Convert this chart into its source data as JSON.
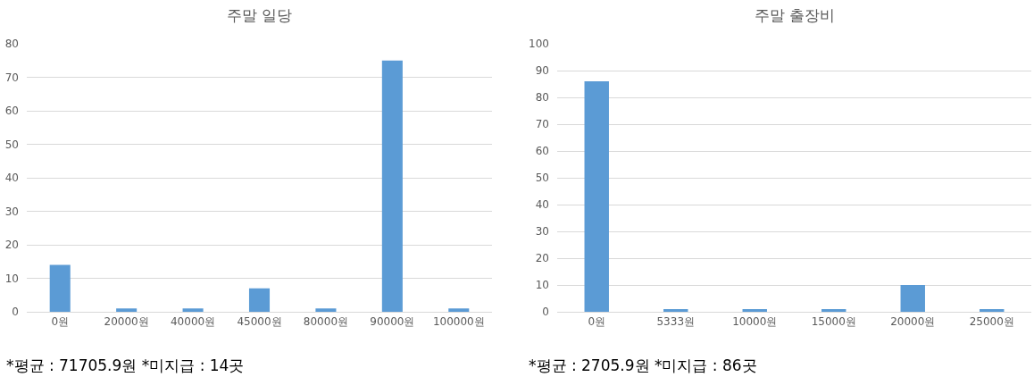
{
  "chart_data": [
    {
      "type": "bar",
      "title": "주말 일당",
      "categories": [
        "0원",
        "20000원",
        "40000원",
        "45000원",
        "80000원",
        "90000원",
        "100000원"
      ],
      "values": [
        14,
        1,
        1,
        7,
        1,
        75,
        1
      ],
      "color": "#5b9bd5",
      "ylim": [
        0,
        80
      ],
      "yticks": [
        0,
        10,
        20,
        30,
        40,
        50,
        60,
        70,
        80
      ],
      "grid": "y",
      "annotations": [
        "*평균 : 71705.9원 *미지급 : 14곳"
      ]
    },
    {
      "type": "bar",
      "title": "주말 출장비",
      "categories": [
        "0원",
        "5333원",
        "10000원",
        "15000원",
        "20000원",
        "25000원"
      ],
      "values": [
        86,
        1,
        1,
        1,
        10,
        1
      ],
      "color": "#5b9bd5",
      "ylim": [
        0,
        100
      ],
      "yticks": [
        0,
        10,
        20,
        30,
        40,
        50,
        60,
        70,
        80,
        90,
        100
      ],
      "grid": "y",
      "annotations": [
        "*평균 : 2705.9원 *미지급 : 86곳"
      ]
    }
  ]
}
